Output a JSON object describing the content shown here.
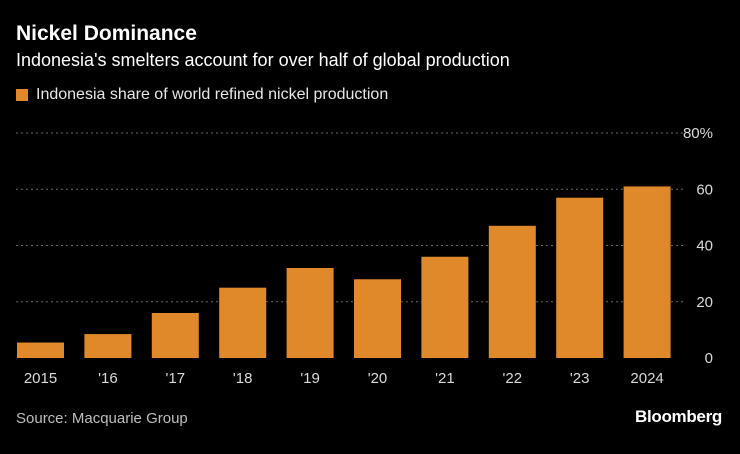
{
  "title": "Nickel Dominance",
  "subtitle": "Indonesia's smelters account for over half of global production",
  "source": "Source: Macquarie Group",
  "brand": "Bloomberg",
  "colors": {
    "bar": "#E0892A",
    "grid": "#666666",
    "background": "#000000",
    "text": "#ffffff",
    "tick": "#d9d9d9"
  },
  "chart_data": {
    "type": "bar",
    "categories": [
      "2015",
      "'16",
      "'17",
      "'18",
      "'19",
      "'20",
      "'21",
      "'22",
      "'23",
      "2024"
    ],
    "series": [
      {
        "name": "Indonesia share of world refined nickel production",
        "values": [
          5.5,
          8.5,
          16,
          25,
          32,
          28,
          36,
          47,
          57,
          61
        ]
      }
    ],
    "ylim": [
      0,
      80
    ],
    "yticks": [
      0,
      20,
      40,
      60,
      80
    ],
    "ytick_labels": [
      "0",
      "20",
      "40",
      "60",
      "80%"
    ],
    "y_axis_position": "right",
    "grid": true,
    "legend_position": "top-left"
  }
}
